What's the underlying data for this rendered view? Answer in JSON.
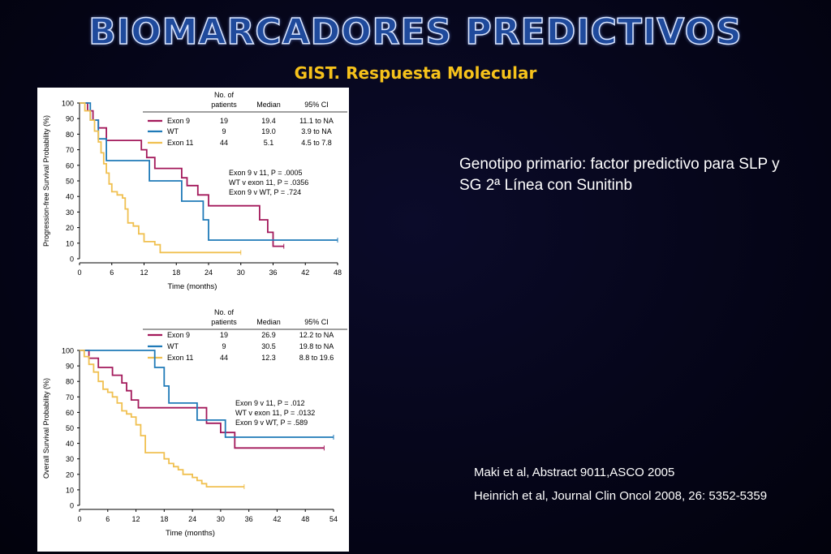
{
  "slide": {
    "title": "BIOMARCADORES PREDICTIVOS",
    "subtitle": "GIST. Respuesta Molecular",
    "note": "Genotipo primario: factor predictivo para SLP y SG 2ª Línea con Sunitinb",
    "references": [
      "Maki et al, Abstract 9011,ASCO 2005",
      "Heinrich et al, Journal Clin Oncol 2008, 26: 5352-5359"
    ]
  },
  "colors": {
    "exon9": "#a3195b",
    "wt": "#1f7ab8",
    "exon11": "#f0c050"
  },
  "chart_data": [
    {
      "type": "line",
      "ylabel": "Progression-free Survival Probability (%)",
      "xlabel": "Time (months)",
      "xlim": [
        0,
        48
      ],
      "ylim": [
        0,
        100
      ],
      "xticks": [
        0,
        6,
        12,
        18,
        24,
        30,
        36,
        42,
        48
      ],
      "yticks": [
        0,
        10,
        20,
        30,
        40,
        50,
        60,
        70,
        80,
        90,
        100
      ],
      "table_headers": {
        "patients": [
          "No. of",
          "patients"
        ],
        "median": "Median",
        "ci": "95% CI"
      },
      "table": [
        {
          "name": "Exon 9",
          "patients": "19",
          "median": "19.4",
          "ci": "11.1 to NA"
        },
        {
          "name": "WT",
          "patients": "9",
          "median": "19.0",
          "ci": "3.9 to NA"
        },
        {
          "name": "Exon 11",
          "patients": "44",
          "median": "5.1",
          "ci": "4.5 to 7.8"
        }
      ],
      "pvalues": [
        "Exon 9 v 11, P = .0005",
        "WT v exon 11, P = .0356",
        "Exon 9 v WT, P = .724"
      ],
      "series": [
        {
          "name": "Exon 9",
          "key": "exon9",
          "x": [
            0,
            1.5,
            2.5,
            3.5,
            5,
            10,
            11.5,
            12.5,
            14,
            19,
            20,
            22,
            24,
            32,
            33.5,
            35,
            36,
            38
          ],
          "y": [
            100,
            95,
            89,
            84,
            76,
            76,
            70,
            65,
            58,
            52,
            47,
            41,
            34,
            34,
            25,
            17,
            8,
            8
          ]
        },
        {
          "name": "WT",
          "key": "wt",
          "x": [
            0,
            2,
            3.5,
            5,
            10.5,
            13,
            14,
            19,
            21,
            23,
            24,
            48
          ],
          "y": [
            100,
            89,
            77,
            63,
            63,
            50,
            50,
            37,
            37,
            25,
            12,
            12
          ]
        },
        {
          "name": "Exon 11",
          "key": "exon11",
          "x": [
            0,
            1,
            2,
            2.8,
            3.5,
            4,
            4.5,
            5,
            5.5,
            6,
            7,
            8,
            8.5,
            9,
            10,
            11,
            12,
            14,
            15,
            30
          ],
          "y": [
            100,
            95,
            89,
            82,
            75,
            68,
            61,
            55,
            48,
            43,
            41,
            39,
            32,
            23,
            21,
            16,
            11,
            9,
            4,
            4
          ]
        }
      ]
    },
    {
      "type": "line",
      "ylabel": "Overall Survival Probability (%)",
      "xlabel": "Time (months)",
      "xlim": [
        0,
        54
      ],
      "ylim": [
        0,
        100
      ],
      "xticks": [
        0,
        6,
        12,
        18,
        24,
        30,
        36,
        42,
        48,
        54
      ],
      "yticks": [
        0,
        10,
        20,
        30,
        40,
        50,
        60,
        70,
        80,
        90,
        100
      ],
      "table_headers": {
        "patients": [
          "No. of",
          "patients"
        ],
        "median": "Median",
        "ci": "95% CI"
      },
      "table": [
        {
          "name": "Exon 9",
          "patients": "19",
          "median": "26.9",
          "ci": "12.2 to NA"
        },
        {
          "name": "WT",
          "patients": "9",
          "median": "30.5",
          "ci": "19.8 to NA"
        },
        {
          "name": "Exon 11",
          "patients": "44",
          "median": "12.3",
          "ci": "8.8 to 19.6"
        }
      ],
      "pvalues": [
        "Exon 9 v 11, P = .012",
        "WT v exon 11, P = .0132",
        "Exon 9 v WT, P = .589"
      ],
      "series": [
        {
          "name": "Exon 9",
          "key": "exon9",
          "x": [
            0,
            2,
            4,
            7,
            9,
            10,
            11,
            12,
            12.5,
            13,
            27,
            28,
            30,
            32,
            33,
            52
          ],
          "y": [
            100,
            95,
            89,
            84,
            79,
            74,
            68,
            68,
            63,
            63,
            53,
            53,
            47,
            47,
            37,
            37
          ]
        },
        {
          "name": "WT",
          "key": "wt",
          "x": [
            0,
            12,
            16,
            18,
            19,
            24,
            25,
            28,
            31,
            33,
            54
          ],
          "y": [
            100,
            100,
            89,
            77,
            66,
            66,
            55,
            55,
            44,
            44,
            44
          ]
        },
        {
          "name": "Exon 11",
          "key": "exon11",
          "x": [
            0,
            1,
            2,
            3,
            4,
            5,
            6,
            7,
            8,
            9,
            10,
            11,
            12,
            13,
            14,
            17,
            18,
            19,
            20,
            21,
            22,
            24,
            25,
            26,
            27,
            35
          ],
          "y": [
            100,
            96,
            91,
            86,
            80,
            75,
            73,
            70,
            66,
            61,
            59,
            57,
            52,
            45,
            34,
            34,
            30,
            27,
            25,
            23,
            20,
            18,
            16,
            14,
            12,
            12
          ]
        }
      ]
    }
  ]
}
